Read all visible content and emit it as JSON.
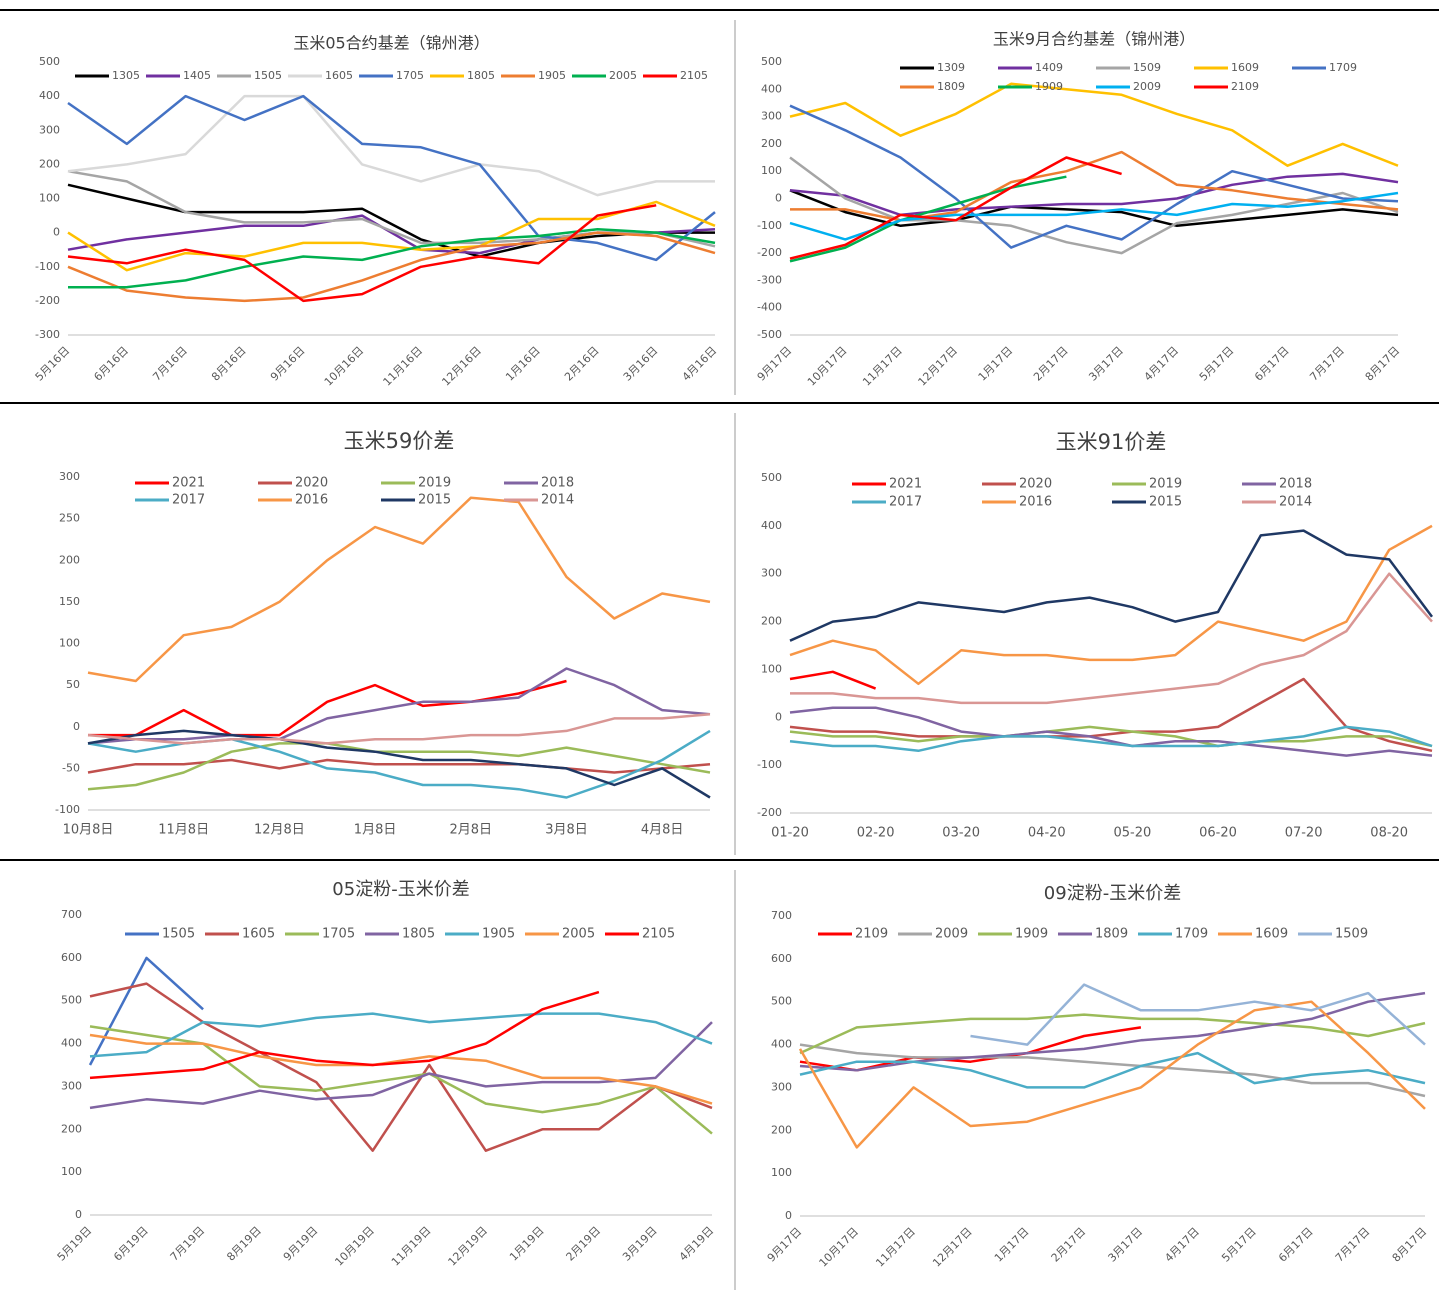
{
  "chart_data": [
    {
      "type": "line",
      "title": "玉米05合约基差（锦州港）",
      "categories": [
        "5月16日",
        "6月16日",
        "7月16日",
        "8月16日",
        "9月16日",
        "10月16日",
        "11月16日",
        "12月16日",
        "1月16日",
        "2月16日",
        "3月16日",
        "4月16日"
      ],
      "ylim": [
        -300,
        500
      ],
      "yticks": [
        -300,
        -200,
        -100,
        0,
        100,
        200,
        300,
        400,
        500
      ],
      "grid": false,
      "series": [
        {
          "name": "1305",
          "color": "#000000",
          "values": [
            140,
            100,
            60,
            60,
            60,
            70,
            -20,
            -70,
            -30,
            -10,
            0,
            0
          ]
        },
        {
          "name": "1405",
          "color": "#7030a0",
          "values": [
            -50,
            -20,
            0,
            20,
            20,
            50,
            -50,
            -60,
            -20,
            0,
            0,
            10
          ]
        },
        {
          "name": "1505",
          "color": "#a5a5a5",
          "values": [
            180,
            150,
            60,
            30,
            30,
            40,
            -30,
            -30,
            -20,
            0,
            0,
            -40
          ]
        },
        {
          "name": "1605",
          "color": "#d9d9d9",
          "values": [
            180,
            200,
            230,
            400,
            400,
            200,
            150,
            200,
            180,
            110,
            150,
            150
          ]
        },
        {
          "name": "1705",
          "color": "#4472c4",
          "values": [
            380,
            260,
            400,
            330,
            400,
            260,
            250,
            200,
            -10,
            -30,
            -80,
            60
          ]
        },
        {
          "name": "1805",
          "color": "#ffc000",
          "values": [
            0,
            -110,
            -60,
            -70,
            -30,
            -30,
            -50,
            -40,
            40,
            40,
            90,
            20
          ]
        },
        {
          "name": "1905",
          "color": "#ed7d31",
          "values": [
            -100,
            -170,
            -190,
            -200,
            -190,
            -140,
            -80,
            -40,
            -30,
            0,
            -10,
            -60
          ]
        },
        {
          "name": "2005",
          "color": "#00b050",
          "values": [
            -160,
            -160,
            -140,
            -100,
            -70,
            -80,
            -40,
            -20,
            -10,
            10,
            0,
            -30
          ]
        },
        {
          "name": "2105",
          "color": "#ff0000",
          "values": [
            -70,
            -90,
            -50,
            -80,
            -200,
            -180,
            -100,
            -70,
            -90,
            50,
            80,
            null
          ]
        }
      ]
    },
    {
      "type": "line",
      "title": "玉米9月合约基差（锦州港）",
      "categories": [
        "9月17日",
        "10月17日",
        "11月17日",
        "12月17日",
        "1月17日",
        "2月17日",
        "3月17日",
        "4月17日",
        "5月17日",
        "6月17日",
        "7月17日",
        "8月17日"
      ],
      "ylim": [
        -500,
        500
      ],
      "yticks": [
        -500,
        -400,
        -300,
        -200,
        -100,
        0,
        100,
        200,
        300,
        400,
        500
      ],
      "grid": false,
      "series": [
        {
          "name": "1309",
          "color": "#000000",
          "values": [
            30,
            -50,
            -100,
            -80,
            -30,
            -40,
            -50,
            -100,
            -80,
            -60,
            -40,
            -60
          ]
        },
        {
          "name": "1409",
          "color": "#7030a0",
          "values": [
            30,
            10,
            -60,
            -40,
            -30,
            -20,
            -20,
            0,
            50,
            80,
            90,
            60
          ]
        },
        {
          "name": "1509",
          "color": "#a5a5a5",
          "values": [
            150,
            0,
            -80,
            -80,
            -100,
            -160,
            -200,
            -90,
            -60,
            -20,
            20,
            -50
          ]
        },
        {
          "name": "1609",
          "color": "#ffc000",
          "values": [
            300,
            350,
            230,
            310,
            420,
            400,
            380,
            310,
            250,
            120,
            200,
            120
          ]
        },
        {
          "name": "1709",
          "color": "#4472c4",
          "values": [
            340,
            250,
            150,
            0,
            -180,
            -100,
            -150,
            -20,
            100,
            50,
            0,
            -10
          ]
        },
        {
          "name": "1809",
          "color": "#ed7d31",
          "values": [
            -40,
            -40,
            -80,
            -50,
            60,
            100,
            170,
            50,
            30,
            0,
            -20,
            -40
          ]
        },
        {
          "name": "1909",
          "color": "#00b050",
          "values": [
            -230,
            -180,
            -80,
            -20,
            40,
            80,
            null,
            null,
            null,
            null,
            null,
            null
          ]
        },
        {
          "name": "2009",
          "color": "#00b0f0",
          "values": [
            -90,
            -150,
            -80,
            -60,
            -60,
            -60,
            -40,
            -60,
            -20,
            -30,
            -10,
            20
          ]
        },
        {
          "name": "2109",
          "color": "#ff0000",
          "values": [
            -220,
            -170,
            -60,
            -80,
            40,
            150,
            90,
            null,
            null,
            null,
            null,
            null
          ]
        }
      ]
    },
    {
      "type": "line",
      "title": "玉米59价差",
      "categories": [
        "10月8日",
        null,
        "11月8日",
        null,
        "12月8日",
        null,
        "1月8日",
        null,
        "2月8日",
        null,
        "3月8日",
        null,
        "4月8日",
        null
      ],
      "ylim": [
        -100,
        300
      ],
      "yticks": [
        -100,
        -50,
        0,
        50,
        100,
        150,
        200,
        250,
        300
      ],
      "grid": false,
      "series": [
        {
          "name": "2021",
          "color": "#ff0000",
          "values": [
            -10,
            -10,
            20,
            -10,
            -10,
            30,
            50,
            25,
            30,
            40,
            55,
            null,
            null,
            null
          ]
        },
        {
          "name": "2020",
          "color": "#c0504d",
          "values": [
            -55,
            -45,
            -45,
            -40,
            -50,
            -40,
            -45,
            -45,
            -45,
            -45,
            -50,
            -55,
            -50,
            -45
          ]
        },
        {
          "name": "2019",
          "color": "#9bbb59",
          "values": [
            -75,
            -70,
            -55,
            -30,
            -20,
            -20,
            -30,
            -30,
            -30,
            -35,
            -25,
            -35,
            -45,
            -55
          ]
        },
        {
          "name": "2018",
          "color": "#8064a2",
          "values": [
            -20,
            -15,
            -15,
            -10,
            -15,
            10,
            20,
            30,
            30,
            35,
            70,
            50,
            20,
            15
          ]
        },
        {
          "name": "2017",
          "color": "#4bacc6",
          "values": [
            -20,
            -30,
            -20,
            -15,
            -30,
            -50,
            -55,
            -70,
            -70,
            -75,
            -85,
            -65,
            -40,
            -5
          ]
        },
        {
          "name": "2016",
          "color": "#f79646",
          "values": [
            65,
            55,
            110,
            120,
            150,
            200,
            240,
            220,
            275,
            270,
            180,
            130,
            160,
            150
          ]
        },
        {
          "name": "2015",
          "color": "#1f3864",
          "values": [
            -20,
            -10,
            -5,
            -10,
            -15,
            -25,
            -30,
            -40,
            -40,
            -45,
            -50,
            -70,
            -50,
            -85
          ]
        },
        {
          "name": "2014",
          "color": "#d99694",
          "values": [
            -10,
            -15,
            -20,
            -15,
            -15,
            -20,
            -15,
            -15,
            -10,
            -10,
            -5,
            10,
            10,
            15
          ]
        }
      ]
    },
    {
      "type": "line",
      "title": "玉米91价差",
      "categories": [
        "01-20",
        null,
        "02-20",
        null,
        "03-20",
        null,
        "04-20",
        null,
        "05-20",
        null,
        "06-20",
        null,
        "07-20",
        null,
        "08-20",
        null
      ],
      "ylim": [
        -200,
        500
      ],
      "yticks": [
        -200,
        -100,
        0,
        100,
        200,
        300,
        400,
        500
      ],
      "grid": false,
      "series": [
        {
          "name": "2021",
          "color": "#ff0000",
          "values": [
            80,
            95,
            60,
            null,
            null,
            null,
            null,
            null,
            null,
            null,
            null,
            null,
            null,
            null,
            null,
            null
          ]
        },
        {
          "name": "2020",
          "color": "#c0504d",
          "values": [
            -20,
            -30,
            -30,
            -40,
            -40,
            -40,
            -40,
            -40,
            -30,
            -30,
            -20,
            30,
            80,
            -20,
            -50,
            -70
          ]
        },
        {
          "name": "2019",
          "color": "#9bbb59",
          "values": [
            -30,
            -40,
            -40,
            -50,
            -40,
            -40,
            -30,
            -20,
            -30,
            -40,
            -60,
            -50,
            -50,
            -40,
            -40,
            -60
          ]
        },
        {
          "name": "2018",
          "color": "#8064a2",
          "values": [
            10,
            20,
            20,
            0,
            -30,
            -40,
            -30,
            -40,
            -60,
            -50,
            -50,
            -60,
            -70,
            -80,
            -70,
            -80
          ]
        },
        {
          "name": "2017",
          "color": "#4bacc6",
          "values": [
            -50,
            -60,
            -60,
            -70,
            -50,
            -40,
            -40,
            -50,
            -60,
            -60,
            -60,
            -50,
            -40,
            -20,
            -30,
            -60
          ]
        },
        {
          "name": "2016",
          "color": "#f79646",
          "values": [
            130,
            160,
            140,
            70,
            140,
            130,
            130,
            120,
            120,
            130,
            200,
            180,
            160,
            200,
            350,
            400
          ]
        },
        {
          "name": "2015",
          "color": "#1f3864",
          "values": [
            160,
            200,
            210,
            240,
            230,
            220,
            240,
            250,
            230,
            200,
            220,
            380,
            390,
            340,
            330,
            210
          ]
        },
        {
          "name": "2014",
          "color": "#d99694",
          "values": [
            50,
            50,
            40,
            40,
            30,
            30,
            30,
            40,
            50,
            60,
            70,
            110,
            130,
            180,
            300,
            200
          ]
        }
      ]
    },
    {
      "type": "line",
      "title": "05淀粉-玉米价差",
      "categories": [
        "5月19日",
        "6月19日",
        "7月19日",
        "8月19日",
        "9月19日",
        "10月19日",
        "11月19日",
        "12月19日",
        "1月19日",
        "2月19日",
        "3月19日",
        "4月19日"
      ],
      "ylim": [
        0,
        700
      ],
      "yticks": [
        0,
        100,
        200,
        300,
        400,
        500,
        600,
        700
      ],
      "grid": false,
      "series": [
        {
          "name": "1505",
          "color": "#4472c4",
          "values": [
            350,
            600,
            480,
            null,
            null,
            null,
            null,
            null,
            null,
            null,
            null,
            null
          ]
        },
        {
          "name": "1605",
          "color": "#c0504d",
          "values": [
            510,
            540,
            450,
            380,
            310,
            150,
            350,
            150,
            200,
            200,
            300,
            250
          ]
        },
        {
          "name": "1705",
          "color": "#9bbb59",
          "values": [
            440,
            420,
            400,
            300,
            290,
            310,
            330,
            260,
            240,
            260,
            300,
            190
          ]
        },
        {
          "name": "1805",
          "color": "#8064a2",
          "values": [
            250,
            270,
            260,
            290,
            270,
            280,
            330,
            300,
            310,
            310,
            320,
            450
          ]
        },
        {
          "name": "1905",
          "color": "#4bacc6",
          "values": [
            370,
            380,
            450,
            440,
            460,
            470,
            450,
            460,
            470,
            470,
            450,
            400
          ]
        },
        {
          "name": "2005",
          "color": "#f79646",
          "values": [
            420,
            400,
            400,
            370,
            350,
            350,
            370,
            360,
            320,
            320,
            300,
            260
          ]
        },
        {
          "name": "2105",
          "color": "#ff0000",
          "values": [
            320,
            330,
            340,
            380,
            360,
            350,
            360,
            400,
            480,
            520,
            null,
            null
          ]
        }
      ]
    },
    {
      "type": "line",
      "title": "09淀粉-玉米价差",
      "categories": [
        "9月17日",
        "10月17日",
        "11月17日",
        "12月17日",
        "1月17日",
        "2月17日",
        "3月17日",
        "4月17日",
        "5月17日",
        "6月17日",
        "7月17日",
        "8月17日"
      ],
      "ylim": [
        0,
        700
      ],
      "yticks": [
        0,
        100,
        200,
        300,
        400,
        500,
        600,
        700
      ],
      "grid": false,
      "series": [
        {
          "name": "2109",
          "color": "#ff0000",
          "values": [
            360,
            340,
            370,
            360,
            380,
            420,
            440,
            null,
            null,
            null,
            null,
            null
          ]
        },
        {
          "name": "2009",
          "color": "#a5a5a5",
          "values": [
            400,
            380,
            370,
            370,
            370,
            360,
            350,
            340,
            330,
            310,
            310,
            280
          ]
        },
        {
          "name": "1909",
          "color": "#9bbb59",
          "values": [
            380,
            440,
            450,
            460,
            460,
            470,
            460,
            460,
            450,
            440,
            420,
            450
          ]
        },
        {
          "name": "1809",
          "color": "#8064a2",
          "values": [
            350,
            340,
            360,
            370,
            380,
            390,
            410,
            420,
            440,
            460,
            500,
            520
          ]
        },
        {
          "name": "1709",
          "color": "#4bacc6",
          "values": [
            330,
            360,
            360,
            340,
            300,
            300,
            350,
            380,
            310,
            330,
            340,
            310
          ]
        },
        {
          "name": "1609",
          "color": "#f79646",
          "values": [
            390,
            160,
            300,
            210,
            220,
            260,
            300,
            400,
            480,
            500,
            380,
            250
          ]
        },
        {
          "name": "1509",
          "color": "#95b3d7",
          "values": [
            null,
            null,
            null,
            420,
            400,
            540,
            480,
            480,
            500,
            480,
            520,
            400
          ]
        }
      ]
    }
  ]
}
